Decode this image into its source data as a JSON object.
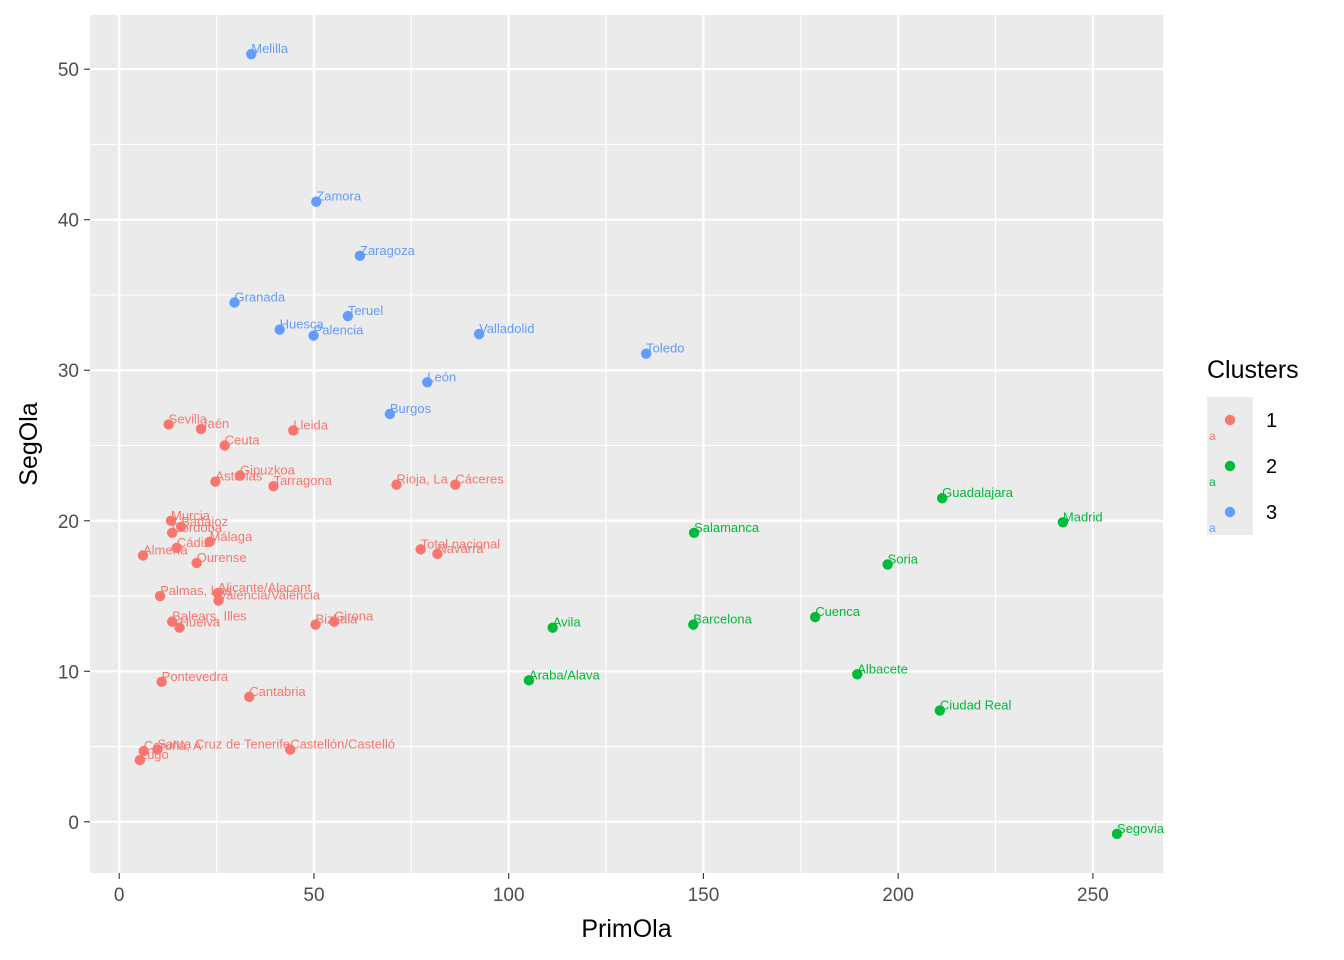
{
  "chart_data": {
    "type": "scatter",
    "title": "",
    "xlabel": "PrimOla",
    "ylabel": "SegOla",
    "xlim": [
      -7.5,
      268
    ],
    "ylim": [
      -3.4,
      53.6
    ],
    "x_ticks": [
      0,
      50,
      100,
      150,
      200,
      250
    ],
    "y_ticks": [
      0,
      10,
      20,
      30,
      40,
      50
    ],
    "x_tick_labels": [
      "0",
      "50",
      "100",
      "150",
      "200",
      "250"
    ],
    "y_tick_labels": [
      "0",
      "10",
      "20",
      "30",
      "40",
      "50"
    ],
    "grid": true,
    "legend": {
      "title": "Clusters",
      "position": "right",
      "entries": [
        {
          "label": "1",
          "color": "#F8766D"
        },
        {
          "label": "2",
          "color": "#00BA38"
        },
        {
          "label": "3",
          "color": "#619CFF"
        }
      ],
      "key_glyph_letter": "a"
    },
    "colors": {
      "1": "#F8766D",
      "2": "#00BA38",
      "3": "#619CFF"
    },
    "points": [
      {
        "label": "Melilla",
        "x": 33.9,
        "y": 51.0,
        "cluster": "3"
      },
      {
        "label": "Zamora",
        "x": 50.6,
        "y": 41.2,
        "cluster": "3"
      },
      {
        "label": "Zaragoza",
        "x": 61.8,
        "y": 37.6,
        "cluster": "3"
      },
      {
        "label": "Granada",
        "x": 29.6,
        "y": 34.5,
        "cluster": "3"
      },
      {
        "label": "Teruel",
        "x": 58.7,
        "y": 33.6,
        "cluster": "3"
      },
      {
        "label": "Huesca",
        "x": 41.2,
        "y": 32.7,
        "cluster": "3"
      },
      {
        "label": "Valladolid",
        "x": 92.4,
        "y": 32.4,
        "cluster": "3"
      },
      {
        "label": "Palencia",
        "x": 49.9,
        "y": 32.3,
        "cluster": "3"
      },
      {
        "label": "Toledo",
        "x": 135.3,
        "y": 31.1,
        "cluster": "3"
      },
      {
        "label": "León",
        "x": 79.1,
        "y": 29.2,
        "cluster": "3"
      },
      {
        "label": "Burgos",
        "x": 69.5,
        "y": 27.1,
        "cluster": "3"
      },
      {
        "label": "Sevilla",
        "x": 12.7,
        "y": 26.4,
        "cluster": "1"
      },
      {
        "label": "Jaén",
        "x": 21.0,
        "y": 26.1,
        "cluster": "1"
      },
      {
        "label": "Lleida",
        "x": 44.7,
        "y": 26.0,
        "cluster": "1"
      },
      {
        "label": "Ceuta",
        "x": 27.1,
        "y": 25.0,
        "cluster": "1"
      },
      {
        "label": "Gipuzkoa",
        "x": 31.0,
        "y": 23.0,
        "cluster": "1"
      },
      {
        "label": "Asturias",
        "x": 24.7,
        "y": 22.6,
        "cluster": "1"
      },
      {
        "label": "Tarragona",
        "x": 39.6,
        "y": 22.3,
        "cluster": "1"
      },
      {
        "label": "Rioja, La",
        "x": 71.2,
        "y": 22.4,
        "cluster": "1"
      },
      {
        "label": "Cáceres",
        "x": 86.3,
        "y": 22.4,
        "cluster": "1"
      },
      {
        "label": "Murcia",
        "x": 13.3,
        "y": 20.0,
        "cluster": "1"
      },
      {
        "label": "Badajoz",
        "x": 15.9,
        "y": 19.6,
        "cluster": "1"
      },
      {
        "label": "Córdoba",
        "x": 13.6,
        "y": 19.2,
        "cluster": "1"
      },
      {
        "label": "Málaga",
        "x": 23.2,
        "y": 18.6,
        "cluster": "1"
      },
      {
        "label": "Cádiz",
        "x": 14.8,
        "y": 18.2,
        "cluster": "1"
      },
      {
        "label": "Almería",
        "x": 6.1,
        "y": 17.7,
        "cluster": "1"
      },
      {
        "label": "Ourense",
        "x": 19.9,
        "y": 17.2,
        "cluster": "1"
      },
      {
        "label": "Total nacional",
        "x": 77.4,
        "y": 18.1,
        "cluster": "1"
      },
      {
        "label": "Navarra",
        "x": 81.7,
        "y": 17.8,
        "cluster": "1"
      },
      {
        "label": "Palmas, Las",
        "x": 10.5,
        "y": 15.0,
        "cluster": "1"
      },
      {
        "label": "Alicante/Alacant",
        "x": 25.3,
        "y": 15.2,
        "cluster": "1"
      },
      {
        "label": "Valencia/València",
        "x": 25.5,
        "y": 14.7,
        "cluster": "1"
      },
      {
        "label": "Balears, Illes",
        "x": 13.6,
        "y": 13.3,
        "cluster": "1"
      },
      {
        "label": "Huelva",
        "x": 15.5,
        "y": 12.9,
        "cluster": "1"
      },
      {
        "label": "Bizkaia",
        "x": 50.4,
        "y": 13.1,
        "cluster": "1"
      },
      {
        "label": "Girona",
        "x": 55.2,
        "y": 13.3,
        "cluster": "1"
      },
      {
        "label": "Pontevedra",
        "x": 10.9,
        "y": 9.3,
        "cluster": "1"
      },
      {
        "label": "Cantabria",
        "x": 33.4,
        "y": 8.3,
        "cluster": "1"
      },
      {
        "label": "Coruña, A",
        "x": 6.3,
        "y": 4.7,
        "cluster": "1"
      },
      {
        "label": "Santa Cruz de Tenerife",
        "x": 9.8,
        "y": 4.8,
        "cluster": "1"
      },
      {
        "label": "Castellón/Castelló",
        "x": 43.9,
        "y": 4.8,
        "cluster": "1"
      },
      {
        "label": "Lugo",
        "x": 5.3,
        "y": 4.1,
        "cluster": "1"
      },
      {
        "label": "Guadalajara",
        "x": 211.3,
        "y": 21.5,
        "cluster": "2"
      },
      {
        "label": "Madrid",
        "x": 242.3,
        "y": 19.9,
        "cluster": "2"
      },
      {
        "label": "Salamanca",
        "x": 147.6,
        "y": 19.2,
        "cluster": "2"
      },
      {
        "label": "Soria",
        "x": 197.3,
        "y": 17.1,
        "cluster": "2"
      },
      {
        "label": "Avila",
        "x": 111.3,
        "y": 12.9,
        "cluster": "2"
      },
      {
        "label": "Barcelona",
        "x": 147.4,
        "y": 13.1,
        "cluster": "2"
      },
      {
        "label": "Cuenca",
        "x": 178.7,
        "y": 13.6,
        "cluster": "2"
      },
      {
        "label": "Albacete",
        "x": 189.5,
        "y": 9.8,
        "cluster": "2"
      },
      {
        "label": "Araba/Alava",
        "x": 105.2,
        "y": 9.4,
        "cluster": "2"
      },
      {
        "label": "Ciudad Real",
        "x": 210.7,
        "y": 7.4,
        "cluster": "2"
      },
      {
        "label": "Segovia",
        "x": 256.2,
        "y": -0.8,
        "cluster": "2"
      }
    ]
  }
}
